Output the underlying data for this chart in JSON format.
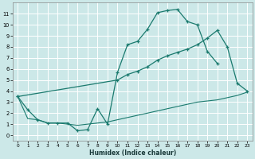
{
  "xlabel": "Humidex (Indice chaleur)",
  "bg_color": "#cce8e8",
  "grid_color": "#ffffff",
  "line_color": "#1a7a6e",
  "xlim": [
    -0.5,
    23.5
  ],
  "ylim": [
    -0.5,
    12
  ],
  "xticks": [
    0,
    1,
    2,
    3,
    4,
    5,
    6,
    7,
    8,
    9,
    10,
    11,
    12,
    13,
    14,
    15,
    16,
    17,
    18,
    19,
    20,
    21,
    22,
    23
  ],
  "yticks": [
    0,
    1,
    2,
    3,
    4,
    5,
    6,
    7,
    8,
    9,
    10,
    11
  ],
  "curve1_x": [
    0,
    1,
    2,
    3,
    4,
    5,
    6,
    7,
    8,
    9,
    10,
    11,
    12,
    13,
    14,
    15,
    16,
    17,
    18,
    19,
    20,
    21,
    22,
    23
  ],
  "curve1_y": [
    3.5,
    2.3,
    1.4,
    1.1,
    1.1,
    1.1,
    0.4,
    0.5,
    2.4,
    1.0,
    5.7,
    8.2,
    8.5,
    9.6,
    11.1,
    11.3,
    11.4,
    10.3,
    10.0,
    7.6,
    6.5,
    null,
    null,
    null
  ],
  "curve2_x": [
    0,
    10,
    11,
    12,
    13,
    14,
    15,
    16,
    17,
    18,
    19,
    20,
    21,
    22,
    23
  ],
  "curve2_y": [
    3.5,
    5.0,
    5.5,
    5.8,
    6.2,
    6.8,
    7.2,
    7.5,
    7.8,
    8.2,
    8.8,
    9.5,
    8.0,
    4.7,
    4.0
  ],
  "curve3_x": [
    0,
    1,
    2,
    3,
    4,
    5,
    6,
    7,
    8,
    9,
    10,
    11,
    12,
    13,
    14,
    15,
    16,
    17,
    18,
    19,
    20,
    21,
    22,
    23
  ],
  "curve3_y": [
    3.5,
    1.5,
    1.4,
    1.1,
    1.1,
    1.0,
    0.9,
    1.0,
    1.1,
    1.2,
    1.4,
    1.6,
    1.8,
    2.0,
    2.2,
    2.4,
    2.6,
    2.8,
    3.0,
    3.1,
    3.2,
    3.4,
    3.6,
    3.9
  ]
}
